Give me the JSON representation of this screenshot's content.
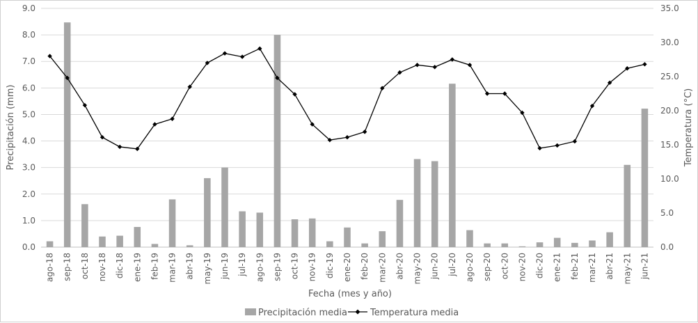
{
  "chart_data": {
    "type": "bar+line",
    "categories": [
      "ago-18",
      "sep-18",
      "oct-18",
      "nov-18",
      "dic-18",
      "ene-19",
      "feb-19",
      "mar-19",
      "abr-19",
      "may-19",
      "jun-19",
      "jul-19",
      "ago-19",
      "sep-19",
      "oct-19",
      "nov-19",
      "dic-19",
      "ene-20",
      "feb-20",
      "mar-20",
      "abr-20",
      "may-20",
      "jun-20",
      "jul-20",
      "ago-20",
      "sep-20",
      "oct-20",
      "nov-20",
      "dic-20",
      "ene-21",
      "feb-21",
      "mar-21",
      "abr-21",
      "may-21",
      "jun-21"
    ],
    "series": [
      {
        "name": "Precipitación media",
        "type": "bar",
        "axis": "left",
        "color": "#a6a6a6",
        "values": [
          0.22,
          8.47,
          1.62,
          0.4,
          0.43,
          0.76,
          0.12,
          1.8,
          0.07,
          2.6,
          3.0,
          1.35,
          1.3,
          8.0,
          1.05,
          1.08,
          0.22,
          0.74,
          0.14,
          0.6,
          1.78,
          3.32,
          3.24,
          6.16,
          0.64,
          0.14,
          0.14,
          0.03,
          0.18,
          0.35,
          0.16,
          0.25,
          0.56,
          3.1,
          5.22
        ]
      },
      {
        "name": "Temperatura media",
        "type": "line",
        "axis": "right",
        "color": "#000000",
        "values": [
          28.0,
          24.8,
          20.8,
          16.1,
          14.7,
          14.4,
          18.0,
          18.8,
          23.5,
          27.0,
          28.4,
          27.9,
          29.1,
          24.8,
          22.4,
          18.0,
          15.7,
          16.1,
          16.9,
          23.3,
          25.6,
          26.7,
          26.4,
          27.5,
          26.7,
          22.5,
          22.5,
          19.7,
          14.5,
          14.9,
          15.5,
          20.7,
          24.1,
          26.2,
          26.8
        ]
      }
    ],
    "xlabel": "Fecha (mes y año)",
    "ylabel_left": "Precipitación (mm)",
    "ylabel_right": "Temperatura (°C)",
    "ylim_left": [
      0,
      9
    ],
    "ylim_right": [
      0,
      35
    ],
    "yticks_left": [
      "0.0",
      "1.0",
      "2.0",
      "3.0",
      "4.0",
      "5.0",
      "6.0",
      "7.0",
      "8.0",
      "9.0"
    ],
    "yticks_right": [
      "0.0",
      "5.0",
      "10.0",
      "15.0",
      "20.0",
      "25.0",
      "30.0",
      "35.0"
    ],
    "grid": true,
    "legend_position": "bottom"
  }
}
